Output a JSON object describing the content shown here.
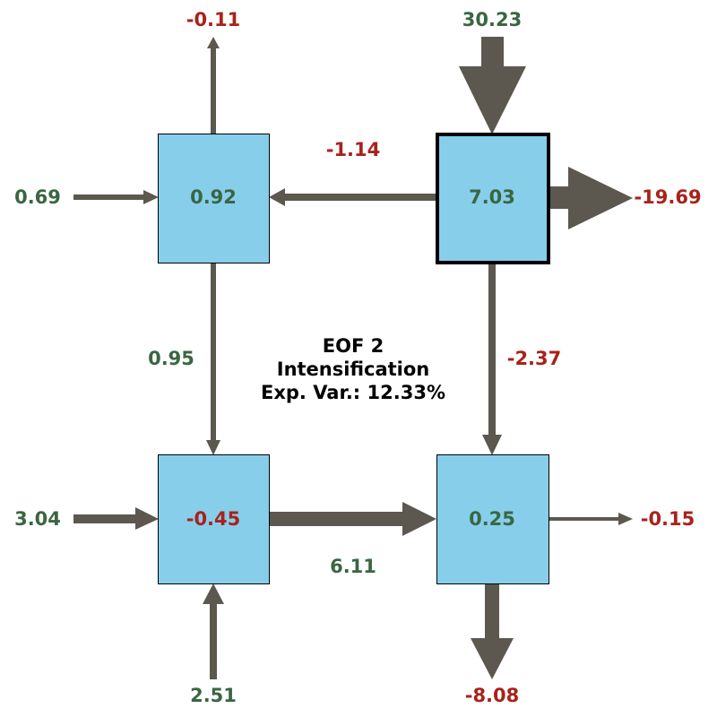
{
  "title": {
    "line1": "EOF 2",
    "line2": "Intensification",
    "line3": "Exp. Var.: 12.33%"
  },
  "colors": {
    "box_fill": "#87ceeb",
    "arrow": "#5c5850",
    "positive_text": "#3a6642",
    "negative_text": "#a8231a"
  },
  "boxes": {
    "top_left": "0.92",
    "top_right": "7.03",
    "bottom_left": "-0.45",
    "bottom_right": "0.25"
  },
  "flows": {
    "top_left_out_up": "-0.11",
    "top_left_in_left": "0.69",
    "top_right_in_top": "30.23",
    "top_right_out_right": "-19.69",
    "top_right_to_top_left": "-1.14",
    "top_left_to_bottom_left": "0.95",
    "top_right_to_bottom_right": "-2.37",
    "bottom_left_in_left": "3.04",
    "bottom_left_to_bottom_right": "6.11",
    "bottom_right_out_right": "-0.15",
    "bottom_left_in_bottom": "2.51",
    "bottom_right_out_down": "-8.08"
  }
}
